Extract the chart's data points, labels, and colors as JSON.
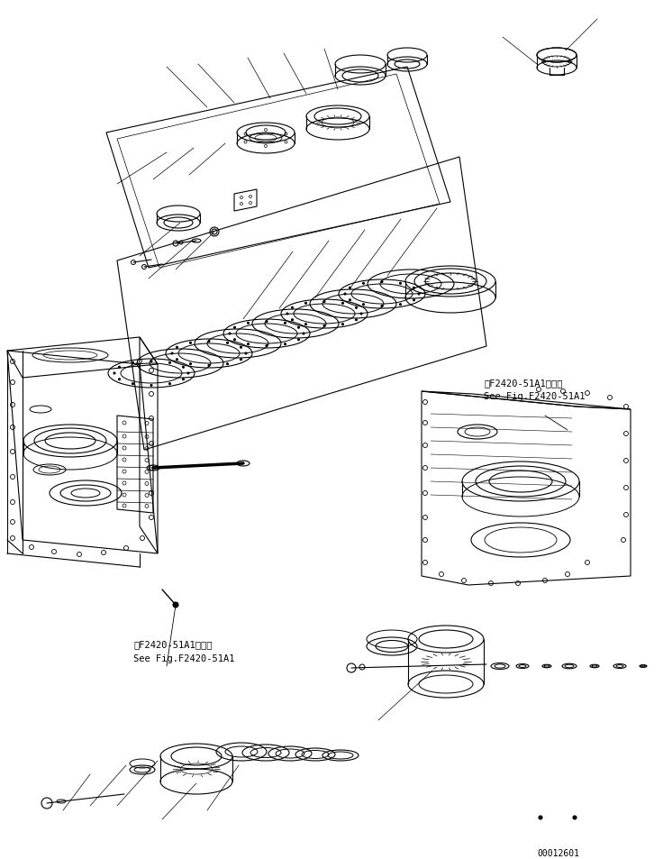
{
  "background_color": "#ffffff",
  "line_color": "#000000",
  "part_number_code": "00012601",
  "annotation_1_line1": "第F2420-51A1図参照",
  "annotation_1_line2": "See Fig.F2420-51A1",
  "annotation_2_line1": "第F2420-51A1図参照",
  "annotation_2_line2": "See Fig.F2420-51A1",
  "figsize": [
    7.36,
    9.54
  ],
  "dpi": 100,
  "lw": 0.8
}
